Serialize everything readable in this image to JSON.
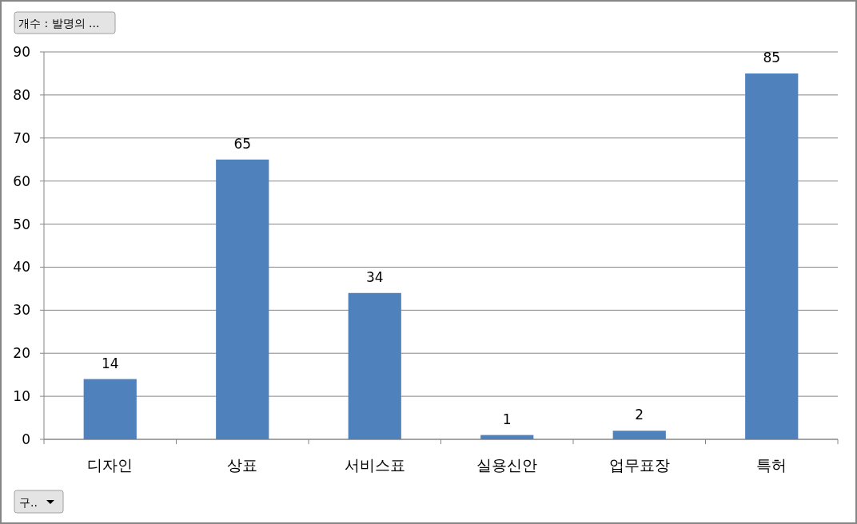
{
  "chart_data": {
    "type": "bar",
    "categories": [
      "디자인",
      "상표",
      "서비스표",
      "실용신안",
      "업무표장",
      "특허"
    ],
    "values": [
      14,
      65,
      34,
      1,
      2,
      85
    ],
    "color": "#4f81bd",
    "ylim": [
      0,
      90
    ],
    "yticks": [
      0,
      10,
      20,
      30,
      40,
      50,
      60,
      70,
      80,
      90
    ],
    "grid": "y",
    "data_labels": true,
    "annotations": [
      "개수 : 발명의 ...",
      "구.."
    ]
  }
}
